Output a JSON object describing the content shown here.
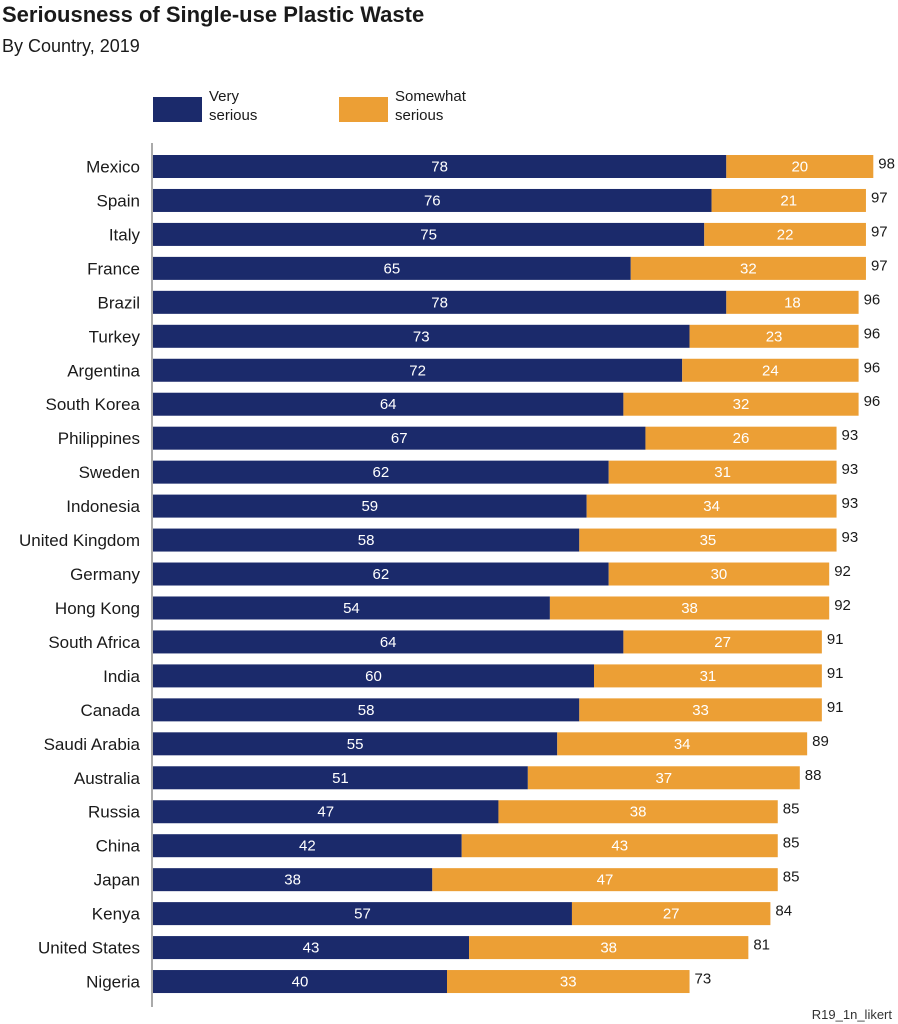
{
  "chart_data": {
    "type": "bar",
    "orientation": "horizontal",
    "stacked": true,
    "title": "Seriousness of Single-use Plastic Waste",
    "subtitle": "By Country, 2019",
    "source_note": "R19_1n_likert",
    "xlim": [
      0,
      100
    ],
    "legend_position": "top-left",
    "categories": [
      "Mexico",
      "Spain",
      "Italy",
      "France",
      "Brazil",
      "Turkey",
      "Argentina",
      "South Korea",
      "Philippines",
      "Sweden",
      "Indonesia",
      "United Kingdom",
      "Germany",
      "Hong Kong",
      "South Africa",
      "India",
      "Canada",
      "Saudi Arabia",
      "Australia",
      "Russia",
      "China",
      "Japan",
      "Kenya",
      "United States",
      "Nigeria"
    ],
    "series": [
      {
        "name": "Very serious",
        "legend_lines": [
          "Very",
          "serious"
        ],
        "color": "#1b2a6b",
        "values": [
          78,
          76,
          75,
          65,
          78,
          73,
          72,
          64,
          67,
          62,
          59,
          58,
          62,
          54,
          64,
          60,
          58,
          55,
          51,
          47,
          42,
          38,
          57,
          43,
          40
        ]
      },
      {
        "name": "Somewhat serious",
        "legend_lines": [
          "Somewhat",
          "serious"
        ],
        "color": "#ec9f35",
        "values": [
          20,
          21,
          22,
          32,
          18,
          23,
          24,
          32,
          26,
          31,
          34,
          35,
          30,
          38,
          27,
          31,
          33,
          34,
          37,
          38,
          43,
          47,
          27,
          38,
          33
        ]
      }
    ],
    "totals": [
      98,
      97,
      97,
      97,
      96,
      96,
      96,
      96,
      93,
      93,
      93,
      93,
      92,
      92,
      91,
      91,
      91,
      89,
      88,
      85,
      85,
      85,
      84,
      81,
      73
    ]
  }
}
